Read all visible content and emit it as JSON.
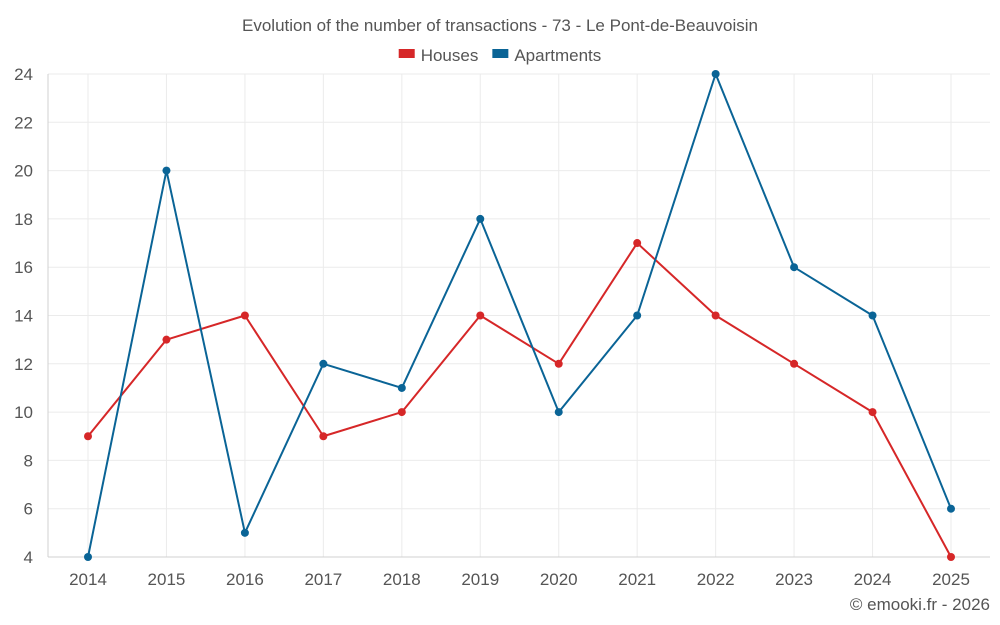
{
  "chart_data": {
    "type": "line",
    "title": "Evolution of the number of transactions - 73 - Le Pont-de-Beauvoisin",
    "categories": [
      "2014",
      "2015",
      "2016",
      "2017",
      "2018",
      "2019",
      "2020",
      "2021",
      "2022",
      "2023",
      "2024",
      "2025"
    ],
    "series": [
      {
        "name": "Houses",
        "color": "#d62728",
        "values": [
          9,
          13,
          14,
          9,
          10,
          14,
          12,
          17,
          14,
          12,
          10,
          4
        ]
      },
      {
        "name": "Apartments",
        "color": "#0a6496",
        "values": [
          4,
          20,
          5,
          12,
          11,
          18,
          10,
          14,
          24,
          16,
          14,
          6
        ]
      }
    ],
    "ylim": [
      4,
      24
    ],
    "yticks": [
      4,
      6,
      8,
      10,
      12,
      14,
      16,
      18,
      20,
      22,
      24
    ],
    "xlabel": "",
    "ylabel": "",
    "grid": true,
    "legend": "top-center"
  },
  "credit": "© emooki.fr - 2026"
}
